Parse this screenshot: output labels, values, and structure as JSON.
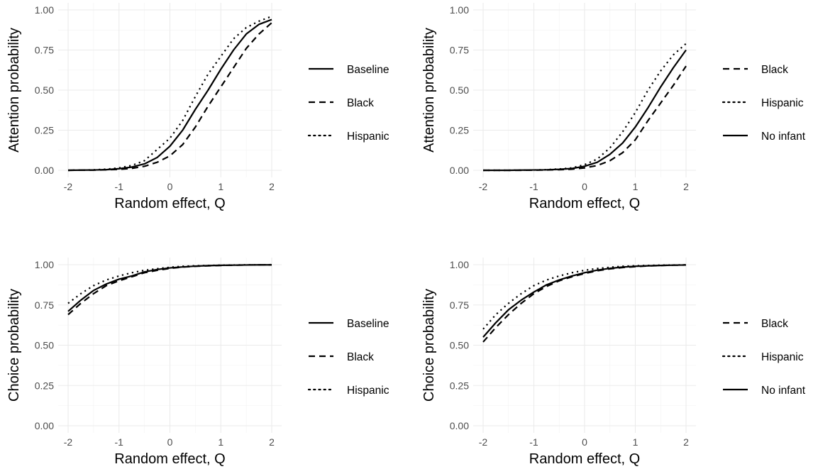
{
  "chart_data": [
    {
      "type": "line",
      "xlabel": "Random effect, Q",
      "ylabel": "Attention probability",
      "xlim": [
        -2,
        2
      ],
      "ylim": [
        0,
        1
      ],
      "xticks": [
        "-2",
        "-1",
        "0",
        "1",
        "2"
      ],
      "yticks": [
        "0.00",
        "0.25",
        "0.50",
        "0.75",
        "1.00"
      ],
      "grid": true,
      "legend_position": "right",
      "x": [
        -2,
        -1.75,
        -1.5,
        -1.25,
        -1,
        -0.75,
        -0.5,
        -0.25,
        0,
        0.25,
        0.5,
        0.75,
        1,
        1.25,
        1.5,
        1.75,
        2
      ],
      "series": [
        {
          "name": "Baseline",
          "linestyle": "solid",
          "values": [
            0.0,
            0.001,
            0.002,
            0.004,
            0.01,
            0.02,
            0.04,
            0.08,
            0.15,
            0.25,
            0.38,
            0.5,
            0.63,
            0.75,
            0.85,
            0.91,
            0.94
          ]
        },
        {
          "name": "Black",
          "linestyle": "dashed",
          "values": [
            0.0,
            0.001,
            0.001,
            0.003,
            0.006,
            0.012,
            0.025,
            0.05,
            0.09,
            0.16,
            0.27,
            0.4,
            0.52,
            0.64,
            0.76,
            0.85,
            0.92
          ]
        },
        {
          "name": "Hispanic",
          "linestyle": "dotted",
          "values": [
            0.0,
            0.001,
            0.003,
            0.007,
            0.015,
            0.03,
            0.06,
            0.13,
            0.2,
            0.31,
            0.46,
            0.6,
            0.71,
            0.82,
            0.89,
            0.93,
            0.96
          ]
        }
      ]
    },
    {
      "type": "line",
      "xlabel": "Random effect, Q",
      "ylabel": "Attention probability",
      "xlim": [
        -2,
        2
      ],
      "ylim": [
        0,
        1
      ],
      "xticks": [
        "-2",
        "-1",
        "0",
        "1",
        "2"
      ],
      "yticks": [
        "0.00",
        "0.25",
        "0.50",
        "0.75",
        "1.00"
      ],
      "grid": true,
      "legend_position": "right",
      "x": [
        -2,
        -1.75,
        -1.5,
        -1.25,
        -1,
        -0.75,
        -0.5,
        -0.25,
        0,
        0.25,
        0.5,
        0.75,
        1,
        1.25,
        1.5,
        1.75,
        2
      ],
      "series": [
        {
          "name": "Black",
          "linestyle": "dashed",
          "values": [
            0.0,
            0.0,
            0.0,
            0.0,
            0.001,
            0.002,
            0.004,
            0.007,
            0.015,
            0.03,
            0.06,
            0.11,
            0.19,
            0.31,
            0.42,
            0.53,
            0.65
          ]
        },
        {
          "name": "Hispanic",
          "linestyle": "dotted",
          "values": [
            0.0,
            0.0,
            0.0,
            0.001,
            0.002,
            0.004,
            0.008,
            0.015,
            0.035,
            0.07,
            0.14,
            0.24,
            0.36,
            0.5,
            0.62,
            0.72,
            0.79
          ]
        },
        {
          "name": "No infant",
          "linestyle": "solid",
          "values": [
            0.0,
            0.0,
            0.0,
            0.001,
            0.002,
            0.003,
            0.006,
            0.011,
            0.025,
            0.05,
            0.1,
            0.17,
            0.27,
            0.39,
            0.52,
            0.64,
            0.75
          ]
        }
      ]
    },
    {
      "type": "line",
      "xlabel": "Random effect, Q",
      "ylabel": "Choice probability",
      "xlim": [
        -2,
        2
      ],
      "ylim": [
        0,
        1
      ],
      "xticks": [
        "-2",
        "-1",
        "0",
        "1",
        "2"
      ],
      "yticks": [
        "0.00",
        "0.25",
        "0.50",
        "0.75",
        "1.00"
      ],
      "grid": true,
      "legend_position": "right",
      "x": [
        -2,
        -1.75,
        -1.5,
        -1.25,
        -1,
        -0.75,
        -0.5,
        -0.25,
        0,
        0.25,
        0.5,
        0.75,
        1,
        1.25,
        1.5,
        1.75,
        2
      ],
      "series": [
        {
          "name": "Baseline",
          "linestyle": "solid",
          "values": [
            0.71,
            0.78,
            0.84,
            0.88,
            0.91,
            0.93,
            0.955,
            0.97,
            0.98,
            0.986,
            0.991,
            0.994,
            0.996,
            0.997,
            0.998,
            0.999,
            0.999
          ]
        },
        {
          "name": "Black",
          "linestyle": "dashed",
          "values": [
            0.69,
            0.76,
            0.82,
            0.87,
            0.9,
            0.925,
            0.95,
            0.965,
            0.977,
            0.985,
            0.99,
            0.993,
            0.995,
            0.997,
            0.998,
            0.999,
            0.999
          ]
        },
        {
          "name": "Hispanic",
          "linestyle": "dotted",
          "values": [
            0.76,
            0.82,
            0.87,
            0.905,
            0.93,
            0.95,
            0.965,
            0.975,
            0.984,
            0.99,
            0.993,
            0.995,
            0.997,
            0.998,
            0.999,
            0.999,
            1.0
          ]
        }
      ]
    },
    {
      "type": "line",
      "xlabel": "Random effect, Q",
      "ylabel": "Choice probability",
      "xlim": [
        -2,
        2
      ],
      "ylim": [
        0,
        1
      ],
      "xticks": [
        "-2",
        "-1",
        "0",
        "1",
        "2"
      ],
      "yticks": [
        "0.00",
        "0.25",
        "0.50",
        "0.75",
        "1.00"
      ],
      "grid": true,
      "legend_position": "right",
      "x": [
        -2,
        -1.75,
        -1.5,
        -1.25,
        -1,
        -0.75,
        -0.5,
        -0.25,
        0,
        0.25,
        0.5,
        0.75,
        1,
        1.25,
        1.5,
        1.75,
        2
      ],
      "series": [
        {
          "name": "Black",
          "linestyle": "dashed",
          "values": [
            0.52,
            0.61,
            0.69,
            0.76,
            0.82,
            0.865,
            0.9,
            0.925,
            0.945,
            0.962,
            0.974,
            0.982,
            0.988,
            0.992,
            0.995,
            0.997,
            0.998
          ]
        },
        {
          "name": "Hispanic",
          "linestyle": "dotted",
          "values": [
            0.6,
            0.69,
            0.76,
            0.82,
            0.87,
            0.905,
            0.93,
            0.95,
            0.965,
            0.976,
            0.984,
            0.99,
            0.993,
            0.995,
            0.997,
            0.998,
            0.999
          ]
        },
        {
          "name": "No infant",
          "linestyle": "solid",
          "values": [
            0.55,
            0.64,
            0.72,
            0.78,
            0.83,
            0.875,
            0.905,
            0.93,
            0.95,
            0.966,
            0.977,
            0.985,
            0.99,
            0.993,
            0.995,
            0.997,
            0.998
          ]
        }
      ]
    }
  ]
}
